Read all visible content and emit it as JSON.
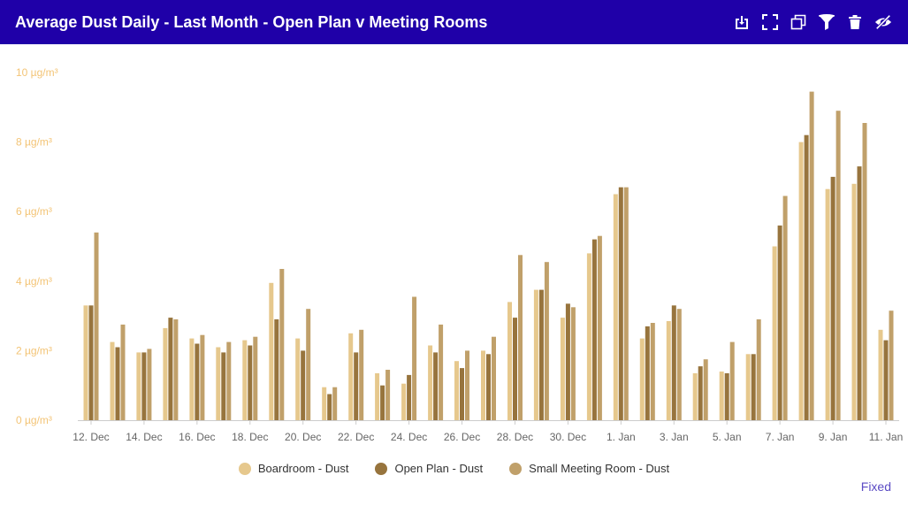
{
  "header": {
    "title": "Average Dust Daily - Last Month - Open Plan v Meeting Rooms",
    "background": "#1f00a8",
    "icons": [
      "download-icon",
      "fullscreen-icon",
      "copy-icon",
      "filter-icon",
      "trash-icon",
      "hide-icon"
    ]
  },
  "footer": {
    "fixed_label": "Fixed"
  },
  "chart_data": {
    "type": "bar",
    "title": "",
    "xlabel": "",
    "ylabel": "",
    "ylim": [
      0,
      10
    ],
    "y_ticks": [
      "0 µg/m³",
      "2 µg/m³",
      "4 µg/m³",
      "6 µg/m³",
      "8 µg/m³",
      "10 µg/m³"
    ],
    "y_tick_values": [
      0,
      2,
      4,
      6,
      8,
      10
    ],
    "x_ticks": [
      "12. Dec",
      "14. Dec",
      "16. Dec",
      "18. Dec",
      "20. Dec",
      "22. Dec",
      "24. Dec",
      "26. Dec",
      "28. Dec",
      "30. Dec",
      "1. Jan",
      "3. Jan",
      "5. Jan",
      "7. Jan",
      "9. Jan",
      "11. Jan"
    ],
    "categories": [
      "12. Dec",
      "13. Dec",
      "14. Dec",
      "15. Dec",
      "16. Dec",
      "17. Dec",
      "18. Dec",
      "19. Dec",
      "20. Dec",
      "21. Dec",
      "22. Dec",
      "23. Dec",
      "24. Dec",
      "25. Dec",
      "26. Dec",
      "27. Dec",
      "28. Dec",
      "29. Dec",
      "30. Dec",
      "31. Dec",
      "1. Jan",
      "2. Jan",
      "3. Jan",
      "4. Jan",
      "5. Jan",
      "6. Jan",
      "7. Jan",
      "8. Jan",
      "9. Jan",
      "10. Jan",
      "11. Jan"
    ],
    "grid": false,
    "legend_position": "bottom-center",
    "series": [
      {
        "name": "Boardroom - Dust",
        "color": "#e6c88d",
        "values": [
          3.3,
          2.25,
          1.95,
          2.65,
          2.35,
          2.1,
          2.3,
          3.95,
          2.35,
          0.95,
          2.5,
          1.35,
          1.05,
          2.15,
          1.7,
          2.0,
          3.4,
          3.75,
          2.95,
          4.8,
          6.5,
          2.35,
          2.85,
          1.35,
          1.4,
          1.9,
          5.0,
          8.0,
          6.65,
          6.8,
          2.6
        ]
      },
      {
        "name": "Open Plan - Dust",
        "color": "#97743d",
        "values": [
          3.3,
          2.1,
          1.95,
          2.95,
          2.2,
          1.95,
          2.15,
          2.9,
          2.0,
          0.75,
          1.95,
          1.0,
          1.3,
          1.95,
          1.5,
          1.9,
          2.95,
          3.75,
          3.35,
          5.2,
          6.7,
          2.7,
          3.3,
          1.55,
          1.35,
          1.9,
          5.6,
          8.2,
          7.0,
          7.3,
          2.3
        ]
      },
      {
        "name": "Small Meeting Room - Dust",
        "color": "#c0a06a",
        "values": [
          5.4,
          2.75,
          2.05,
          2.9,
          2.45,
          2.25,
          2.4,
          4.35,
          3.2,
          0.95,
          2.6,
          1.45,
          3.55,
          2.75,
          2.0,
          2.4,
          4.75,
          4.55,
          3.25,
          5.3,
          6.7,
          2.8,
          3.2,
          1.75,
          2.25,
          2.9,
          6.45,
          9.45,
          8.9,
          8.55,
          3.15
        ]
      }
    ]
  }
}
